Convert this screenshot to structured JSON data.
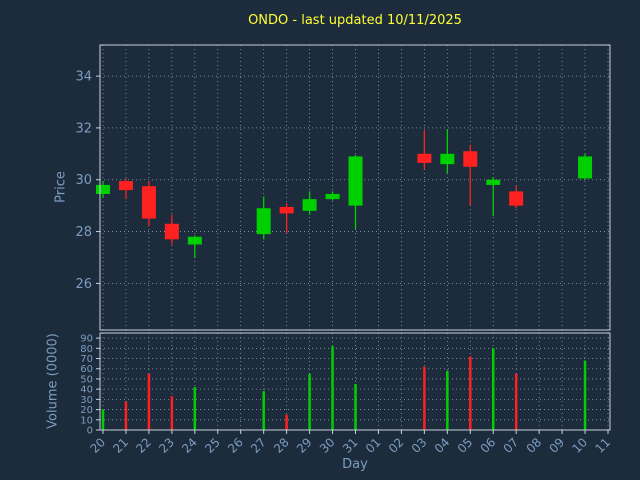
{
  "chart_data": {
    "type": "candlestick",
    "title": "ONDO - last updated 10/11/2025",
    "xlabel": "Day",
    "ylabel_price": "Price",
    "ylabel_volume": "Volume (0000)",
    "x_ticklabels": [
      "20",
      "21",
      "22",
      "23",
      "24",
      "25",
      "26",
      "27",
      "28",
      "29",
      "30",
      "31",
      "01",
      "02",
      "03",
      "04",
      "05",
      "06",
      "07",
      "08",
      "09",
      "10",
      "11"
    ],
    "price_ticks": [
      26,
      28,
      30,
      32,
      34
    ],
    "price_ylim": [
      24.2,
      35.2
    ],
    "volume_ticks": [
      0,
      10,
      20,
      30,
      40,
      50,
      60,
      70,
      80,
      90
    ],
    "volume_ylim": [
      0,
      95
    ],
    "grid": true,
    "legend": "none",
    "colors": {
      "background": "#1c2c3c",
      "title": "#ffff33",
      "text": "#7d9cc0",
      "spine": "#c6d2de",
      "grid": "#9fb2c4",
      "up": "#00d000",
      "down": "#ff2020"
    },
    "candles": [
      {
        "day": "20",
        "o": 29.45,
        "h": 29.95,
        "l": 29.3,
        "c": 29.8,
        "v": 20
      },
      {
        "day": "21",
        "o": 29.95,
        "h": 30.05,
        "l": 29.25,
        "c": 29.6,
        "v": 28
      },
      {
        "day": "22",
        "o": 29.75,
        "h": 29.95,
        "l": 28.2,
        "c": 28.5,
        "v": 55
      },
      {
        "day": "23",
        "o": 28.3,
        "h": 28.65,
        "l": 27.5,
        "c": 27.7,
        "v": 33
      },
      {
        "day": "24",
        "o": 27.5,
        "h": 27.85,
        "l": 27.0,
        "c": 27.8,
        "v": 42
      },
      {
        "day": "27",
        "o": 27.9,
        "h": 29.35,
        "l": 27.7,
        "c": 28.9,
        "v": 38
      },
      {
        "day": "28",
        "o": 28.95,
        "h": 29.1,
        "l": 27.95,
        "c": 28.7,
        "v": 15
      },
      {
        "day": "29",
        "o": 28.8,
        "h": 29.55,
        "l": 28.65,
        "c": 29.25,
        "v": 55
      },
      {
        "day": "30",
        "o": 29.25,
        "h": 29.55,
        "l": 29.2,
        "c": 29.45,
        "v": 82
      },
      {
        "day": "31",
        "o": 29.0,
        "h": 30.95,
        "l": 28.1,
        "c": 30.9,
        "v": 45
      },
      {
        "day": "03",
        "o": 31.0,
        "h": 31.9,
        "l": 30.4,
        "c": 30.65,
        "v": 62
      },
      {
        "day": "04",
        "o": 30.6,
        "h": 31.95,
        "l": 30.25,
        "c": 31.0,
        "v": 58
      },
      {
        "day": "05",
        "o": 31.1,
        "h": 31.35,
        "l": 29.0,
        "c": 30.5,
        "v": 72
      },
      {
        "day": "06",
        "o": 29.8,
        "h": 30.1,
        "l": 28.6,
        "c": 30.0,
        "v": 80
      },
      {
        "day": "07",
        "o": 29.55,
        "h": 29.75,
        "l": 28.9,
        "c": 29.0,
        "v": 55
      },
      {
        "day": "10",
        "o": 30.05,
        "h": 31.0,
        "l": 30.0,
        "c": 30.9,
        "v": 68
      }
    ]
  }
}
